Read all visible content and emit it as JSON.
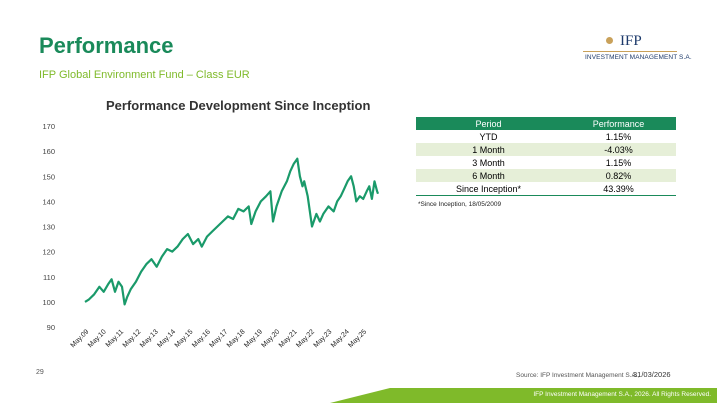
{
  "header": {
    "title": "Performance",
    "subtitle": "IFP Global Environment Fund – Class EUR"
  },
  "logo": {
    "name": "IFP",
    "tagline": "INVESTMENT MANAGEMENT S.A."
  },
  "colors": {
    "brand_green": "#1a8a5a",
    "accent_lime": "#7fba2a",
    "logo_gold": "#c9a15a",
    "logo_navy": "#1d3a6b",
    "row_shade": "#e6efd8",
    "line": "#1a9a6a"
  },
  "chart_data": {
    "type": "line",
    "title": "Performance Development Since Inception",
    "xlabel": "",
    "ylabel": "",
    "ylim": [
      90,
      170
    ],
    "yticks": [
      90,
      100,
      110,
      120,
      130,
      140,
      150,
      160,
      170
    ],
    "xticks": [
      "May.09",
      "May.10",
      "May.11",
      "May.12",
      "May.13",
      "May.14",
      "May.15",
      "May.16",
      "May.17",
      "May.18",
      "May.19",
      "May.20",
      "May.21",
      "May.22",
      "May.23",
      "May.24",
      "May.25"
    ],
    "grid": false,
    "legend": "none",
    "series": [
      {
        "x": [
          2009.37,
          2009.6,
          2009.9,
          2010.2,
          2010.45,
          2010.7,
          2010.9,
          2011.1,
          2011.3,
          2011.5,
          2011.65,
          2011.8,
          2012.0,
          2012.3,
          2012.6,
          2012.9,
          2013.2,
          2013.5,
          2013.8,
          2014.1,
          2014.4,
          2014.7,
          2015.0,
          2015.3,
          2015.6,
          2015.9,
          2016.1,
          2016.4,
          2016.7,
          2017.0,
          2017.3,
          2017.6,
          2017.9,
          2018.2,
          2018.5,
          2018.8,
          2018.95,
          2019.2,
          2019.5,
          2019.8,
          2020.05,
          2020.2,
          2020.4,
          2020.7,
          2021.0,
          2021.2,
          2021.4,
          2021.6,
          2021.75,
          2021.9,
          2022.0,
          2022.2,
          2022.45,
          2022.7,
          2022.9,
          2023.1,
          2023.4,
          2023.7,
          2023.9,
          2024.1,
          2024.3,
          2024.5,
          2024.7,
          2024.85,
          2025.0,
          2025.2,
          2025.4,
          2025.6,
          2025.75,
          2025.9,
          2026.05,
          2026.2,
          2026.25
        ],
        "values": [
          100,
          101,
          103,
          106,
          104,
          107,
          109,
          104,
          108,
          106,
          99,
          102,
          105,
          108,
          112,
          115,
          117,
          114,
          118,
          121,
          120,
          122,
          125,
          127,
          123,
          125,
          122,
          126,
          128,
          130,
          132,
          134,
          133,
          137,
          136,
          138,
          131,
          136,
          140,
          142,
          144,
          132,
          138,
          144,
          148,
          152,
          155,
          157,
          150,
          146,
          148,
          142,
          130,
          135,
          132,
          135,
          138,
          136,
          140,
          142,
          145,
          148,
          150,
          146,
          140,
          142,
          141,
          144,
          146,
          141,
          148,
          144,
          143
        ]
      }
    ]
  },
  "table": {
    "headers": [
      "Period",
      "Performance"
    ],
    "rows": [
      [
        "YTD",
        "1.15%"
      ],
      [
        "1 Month",
        "-4.03%"
      ],
      [
        "3 Month",
        "1.15%"
      ],
      [
        "6 Month",
        "0.82%"
      ],
      [
        "Since Inception*",
        "43.39%"
      ]
    ]
  },
  "footnote": "*Since Inception, 18/05/2009",
  "footer": {
    "page": "29",
    "source": "Source: IFP Investment Management S.A.,",
    "date": "31/03/2026",
    "copyright": "IFP Investment Management S.A., 2026. All Rights Reserved."
  }
}
